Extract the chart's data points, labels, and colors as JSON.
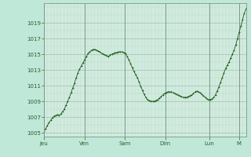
{
  "background_color": "#c0e8d8",
  "plot_bg_color": "#d0ece0",
  "line_color": "#1a5c1a",
  "marker_color": "#1a5c1a",
  "grid_color_major": "#aabcaa",
  "grid_color_minor": "#c0d4c0",
  "tick_label_color": "#2a5c2a",
  "ylabel_values": [
    1005,
    1007,
    1009,
    1011,
    1013,
    1015,
    1017,
    1019
  ],
  "x_labels": [
    "Jeu",
    "Ven",
    "Sam",
    "Dim",
    "Lun",
    "M"
  ],
  "ylim": [
    1004.5,
    1021.5
  ],
  "pressure_data": [
    1005.2,
    1005.5,
    1005.9,
    1006.3,
    1006.6,
    1006.9,
    1007.1,
    1007.2,
    1007.3,
    1007.2,
    1007.4,
    1007.7,
    1008.0,
    1008.5,
    1009.0,
    1009.5,
    1010.1,
    1010.7,
    1011.3,
    1012.0,
    1012.6,
    1013.1,
    1013.5,
    1013.9,
    1014.3,
    1014.7,
    1015.1,
    1015.3,
    1015.5,
    1015.6,
    1015.6,
    1015.5,
    1015.4,
    1015.3,
    1015.1,
    1015.0,
    1014.9,
    1014.8,
    1014.7,
    1014.9,
    1015.0,
    1015.1,
    1015.2,
    1015.2,
    1015.3,
    1015.3,
    1015.3,
    1015.2,
    1015.1,
    1014.7,
    1014.3,
    1013.8,
    1013.3,
    1012.8,
    1012.4,
    1012.0,
    1011.5,
    1010.9,
    1010.4,
    1009.9,
    1009.5,
    1009.2,
    1009.1,
    1009.0,
    1009.0,
    1009.0,
    1009.1,
    1009.2,
    1009.4,
    1009.6,
    1009.8,
    1010.0,
    1010.1,
    1010.2,
    1010.2,
    1010.2,
    1010.1,
    1010.0,
    1009.9,
    1009.8,
    1009.7,
    1009.6,
    1009.5,
    1009.5,
    1009.5,
    1009.6,
    1009.7,
    1009.8,
    1010.0,
    1010.2,
    1010.3,
    1010.2,
    1010.1,
    1009.9,
    1009.7,
    1009.5,
    1009.3,
    1009.2,
    1009.2,
    1009.3,
    1009.5,
    1009.8,
    1010.3,
    1010.8,
    1011.4,
    1012.0,
    1012.6,
    1013.2,
    1013.6,
    1014.0,
    1014.5,
    1015.0,
    1015.5,
    1016.2,
    1017.0,
    1017.8,
    1018.6,
    1019.4,
    1020.2,
    1020.8
  ],
  "day_x_fractions": [
    0.0,
    0.2,
    0.4,
    0.6,
    0.82,
    0.965
  ]
}
